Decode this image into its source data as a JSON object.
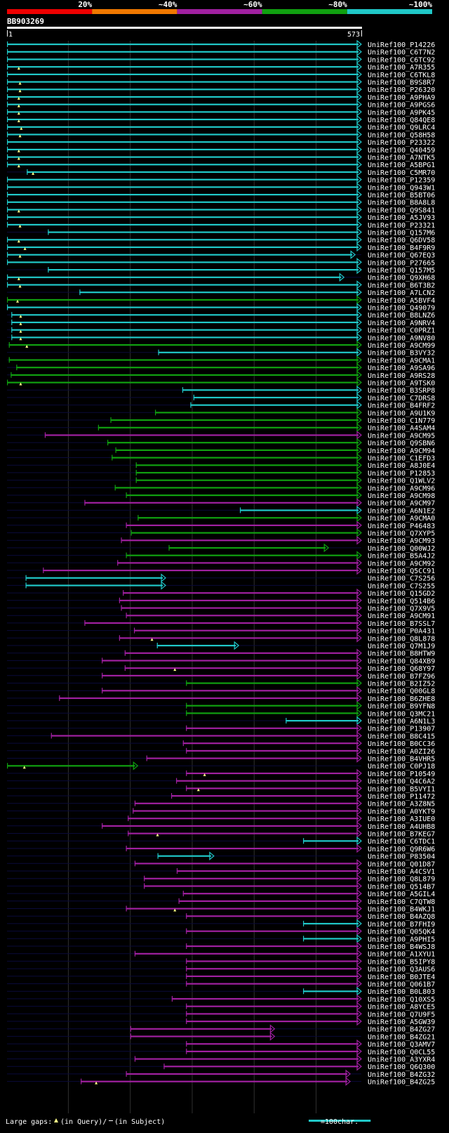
{
  "query_id": "BB903269",
  "query_start": "1",
  "query_end": "573",
  "query_length": 573,
  "legend": {
    "ranges": [
      {
        "label": "20%",
        "color": "#ee0000"
      },
      {
        "label": "~40%",
        "color": "#f07800"
      },
      {
        "label": "~60%",
        "color": "#a020a0"
      },
      {
        "label": "~80%",
        "color": "#10a010"
      },
      {
        "label": "~100%",
        "color": "#20c8c8"
      }
    ],
    "gap_text_prefix": "Large gaps:",
    "gap_text_query": "(in Query)/",
    "gap_text_subject": "(in Subject)",
    "scale_text": "=100char.",
    "scale_value": 100
  },
  "chart_data": {
    "type": "alignment_overview",
    "x_range": [
      1,
      573
    ],
    "identity_colors": {
      "c": "#20c8c8",
      "g": "#10a010",
      "m": "#a020a0"
    },
    "hits": [
      {
        "id": "UniRef100_P14226",
        "s": 1,
        "e": 573,
        "c": "c",
        "m": []
      },
      {
        "id": "UniRef100_C6T7N2",
        "s": 1,
        "e": 573,
        "c": "c",
        "m": []
      },
      {
        "id": "UniRef100_C6TC92",
        "s": 1,
        "e": 573,
        "c": "c",
        "m": []
      },
      {
        "id": "UniRef100_A7R355",
        "s": 1,
        "e": 573,
        "c": "c",
        "m": [
          20
        ]
      },
      {
        "id": "UniRef100_C6TKL8",
        "s": 1,
        "e": 573,
        "c": "c",
        "m": []
      },
      {
        "id": "UniRef100_B9S8R7",
        "s": 1,
        "e": 573,
        "c": "c",
        "m": [
          22
        ]
      },
      {
        "id": "UniRef100_P26320",
        "s": 1,
        "e": 573,
        "c": "c",
        "m": [
          22
        ]
      },
      {
        "id": "UniRef100_A9PHA9",
        "s": 1,
        "e": 573,
        "c": "c",
        "m": [
          20
        ]
      },
      {
        "id": "UniRef100_A9PGS6",
        "s": 1,
        "e": 573,
        "c": "c",
        "m": [
          20
        ]
      },
      {
        "id": "UniRef100_A9PK45",
        "s": 1,
        "e": 573,
        "c": "c",
        "m": [
          20
        ]
      },
      {
        "id": "UniRef100_Q84QE8",
        "s": 1,
        "e": 573,
        "c": "c",
        "m": [
          20
        ]
      },
      {
        "id": "UniRef100_Q9LRC4",
        "s": 1,
        "e": 573,
        "c": "c",
        "m": [
          24
        ]
      },
      {
        "id": "UniRef100_Q58H58",
        "s": 1,
        "e": 573,
        "c": "c",
        "m": [
          22
        ]
      },
      {
        "id": "UniRef100_P23322",
        "s": 1,
        "e": 573,
        "c": "c",
        "m": []
      },
      {
        "id": "UniRef100_Q40459",
        "s": 1,
        "e": 573,
        "c": "c",
        "m": [
          20
        ]
      },
      {
        "id": "UniRef100_A7NTK5",
        "s": 1,
        "e": 573,
        "c": "c",
        "m": [
          20
        ]
      },
      {
        "id": "UniRef100_A5BPG1",
        "s": 1,
        "e": 573,
        "c": "c",
        "m": [
          20
        ]
      },
      {
        "id": "UniRef100_C5MR70",
        "s": 33,
        "e": 573,
        "c": "c",
        "m": [
          43
        ]
      },
      {
        "id": "UniRef100_P12359",
        "s": 1,
        "e": 573,
        "c": "c",
        "m": []
      },
      {
        "id": "UniRef100_Q943W1",
        "s": 1,
        "e": 573,
        "c": "c",
        "m": []
      },
      {
        "id": "UniRef100_B5BT06",
        "s": 1,
        "e": 573,
        "c": "c",
        "m": []
      },
      {
        "id": "UniRef100_B8A8L8",
        "s": 1,
        "e": 573,
        "c": "c",
        "m": []
      },
      {
        "id": "UniRef100_Q9S841",
        "s": 1,
        "e": 573,
        "c": "c",
        "m": [
          20
        ]
      },
      {
        "id": "UniRef100_A5JV93",
        "s": 1,
        "e": 573,
        "c": "c",
        "m": []
      },
      {
        "id": "UniRef100_P23321",
        "s": 1,
        "e": 573,
        "c": "c",
        "m": [
          22
        ]
      },
      {
        "id": "UniRef100_Q157M6",
        "s": 67,
        "e": 573,
        "c": "c",
        "m": []
      },
      {
        "id": "UniRef100_Q6DV58",
        "s": 1,
        "e": 573,
        "c": "c",
        "m": [
          20
        ]
      },
      {
        "id": "UniRef100_B4F9R9",
        "s": 1,
        "e": 573,
        "c": "c",
        "m": [
          30
        ]
      },
      {
        "id": "UniRef100_Q67EQ3",
        "s": 1,
        "e": 563,
        "c": "c",
        "m": [
          22
        ]
      },
      {
        "id": "UniRef100_P27665",
        "s": 1,
        "e": 573,
        "c": "c",
        "m": []
      },
      {
        "id": "UniRef100_Q157M5",
        "s": 67,
        "e": 573,
        "c": "c",
        "m": []
      },
      {
        "id": "UniRef100_Q9XH68",
        "s": 1,
        "e": 545,
        "c": "c",
        "m": [
          20
        ]
      },
      {
        "id": "UniRef100_B6T3B2",
        "s": 1,
        "e": 573,
        "c": "c",
        "m": [
          22
        ]
      },
      {
        "id": "UniRef100_A7LCN2",
        "s": 118,
        "e": 573,
        "c": "c",
        "m": []
      },
      {
        "id": "UniRef100_A5BVF4",
        "s": 1,
        "e": 573,
        "c": "g",
        "m": [
          18
        ]
      },
      {
        "id": "UniRef100_Q49079",
        "s": 1,
        "e": 573,
        "c": "c",
        "m": []
      },
      {
        "id": "UniRef100_B8LNZ6",
        "s": 8,
        "e": 573,
        "c": "c",
        "m": [
          23
        ]
      },
      {
        "id": "UniRef100_A9NRV4",
        "s": 8,
        "e": 573,
        "c": "c",
        "m": [
          23
        ]
      },
      {
        "id": "UniRef100_C0PRZ1",
        "s": 8,
        "e": 573,
        "c": "c",
        "m": [
          23
        ]
      },
      {
        "id": "UniRef100_A9NV80",
        "s": 8,
        "e": 573,
        "c": "c",
        "m": [
          23
        ]
      },
      {
        "id": "UniRef100_A9CM99",
        "s": 4,
        "e": 573,
        "c": "g",
        "m": [
          33
        ]
      },
      {
        "id": "UniRef100_B3VY32",
        "s": 245,
        "e": 573,
        "c": "c",
        "m": []
      },
      {
        "id": "UniRef100_A9CMA1",
        "s": 4,
        "e": 573,
        "c": "g",
        "m": []
      },
      {
        "id": "UniRef100_A9SA96",
        "s": 16,
        "e": 573,
        "c": "g",
        "m": []
      },
      {
        "id": "UniRef100_A9RS28",
        "s": 7,
        "e": 573,
        "c": "g",
        "m": []
      },
      {
        "id": "UniRef100_A9TSK0",
        "s": 1,
        "e": 573,
        "c": "g",
        "m": [
          23
        ]
      },
      {
        "id": "UniRef100_B3SRP8",
        "s": 284,
        "e": 573,
        "c": "c",
        "m": []
      },
      {
        "id": "UniRef100_C7DRS8",
        "s": 302,
        "e": 573,
        "c": "c",
        "m": []
      },
      {
        "id": "UniRef100_B4FRF2",
        "s": 297,
        "e": 573,
        "c": "c",
        "m": []
      },
      {
        "id": "UniRef100_A9U1K9",
        "s": 240,
        "e": 573,
        "c": "g",
        "m": []
      },
      {
        "id": "UniRef100_C1N779",
        "s": 168,
        "e": 573,
        "c": "g",
        "m": []
      },
      {
        "id": "UniRef100_A4SAM4",
        "s": 148,
        "e": 573,
        "c": "g",
        "m": []
      },
      {
        "id": "UniRef100_A9CM95",
        "s": 62,
        "e": 573,
        "c": "m",
        "m": []
      },
      {
        "id": "UniRef100_Q9SBN6",
        "s": 163,
        "e": 573,
        "c": "g",
        "m": []
      },
      {
        "id": "UniRef100_A9CM94",
        "s": 176,
        "e": 573,
        "c": "g",
        "m": []
      },
      {
        "id": "UniRef100_C1EFD3",
        "s": 170,
        "e": 573,
        "c": "g",
        "m": []
      },
      {
        "id": "UniRef100_A8J0E4",
        "s": 209,
        "e": 573,
        "c": "g",
        "m": []
      },
      {
        "id": "UniRef100_P12853",
        "s": 209,
        "e": 573,
        "c": "g",
        "m": []
      },
      {
        "id": "UniRef100_Q1WLV2",
        "s": 209,
        "e": 573,
        "c": "g",
        "m": []
      },
      {
        "id": "UniRef100_A9CM96",
        "s": 175,
        "e": 573,
        "c": "g",
        "m": []
      },
      {
        "id": "UniRef100_A9CM98",
        "s": 193,
        "e": 573,
        "c": "g",
        "m": []
      },
      {
        "id": "UniRef100_A9CM97",
        "s": 126,
        "e": 573,
        "c": "m",
        "m": []
      },
      {
        "id": "UniRef100_A6N1E2",
        "s": 377,
        "e": 573,
        "c": "c",
        "m": []
      },
      {
        "id": "UniRef100_A9CMA0",
        "s": 212,
        "e": 573,
        "c": "g",
        "m": []
      },
      {
        "id": "UniRef100_P46483",
        "s": 193,
        "e": 573,
        "c": "m",
        "m": []
      },
      {
        "id": "UniRef100_Q7XYP5",
        "s": 201,
        "e": 573,
        "c": "g",
        "m": []
      },
      {
        "id": "UniRef100_A9CM93",
        "s": 185,
        "e": 573,
        "c": "m",
        "m": []
      },
      {
        "id": "UniRef100_Q00WJ2",
        "s": 262,
        "e": 520,
        "c": "g",
        "m": []
      },
      {
        "id": "UniRef100_B5A4J2",
        "s": 193,
        "e": 573,
        "c": "g",
        "m": []
      },
      {
        "id": "UniRef100_A9CM92",
        "s": 179,
        "e": 573,
        "c": "m",
        "m": []
      },
      {
        "id": "UniRef100_Q5CC91",
        "s": 59,
        "e": 573,
        "c": "m",
        "m": []
      },
      {
        "id": "UniRef100_C7S256",
        "s": 31,
        "e": 257,
        "c": "c",
        "m": []
      },
      {
        "id": "UniRef100_C7S255",
        "s": 31,
        "e": 257,
        "c": "c",
        "m": []
      },
      {
        "id": "UniRef100_Q15GD2",
        "s": 188,
        "e": 573,
        "c": "m",
        "m": []
      },
      {
        "id": "UniRef100_Q514B6",
        "s": 182,
        "e": 573,
        "c": "m",
        "m": []
      },
      {
        "id": "UniRef100_Q7X9V5",
        "s": 185,
        "e": 573,
        "c": "m",
        "m": []
      },
      {
        "id": "UniRef100_A9CM91",
        "s": 193,
        "e": 573,
        "c": "m",
        "m": []
      },
      {
        "id": "UniRef100_B7SSL7",
        "s": 126,
        "e": 573,
        "c": "m",
        "m": []
      },
      {
        "id": "UniRef100_P0A431",
        "s": 206,
        "e": 573,
        "c": "m",
        "m": []
      },
      {
        "id": "UniRef100_Q8L878",
        "s": 182,
        "e": 573,
        "c": "m",
        "m": [
          235
        ]
      },
      {
        "id": "UniRef100_Q7M1J9",
        "s": 243,
        "e": 375,
        "c": "c",
        "m": []
      },
      {
        "id": "UniRef100_B8HTW9",
        "s": 191,
        "e": 573,
        "c": "m",
        "m": []
      },
      {
        "id": "UniRef100_Q84XB9",
        "s": 154,
        "e": 573,
        "c": "m",
        "m": []
      },
      {
        "id": "UniRef100_Q68Y97",
        "s": 191,
        "e": 573,
        "c": "m",
        "m": [
          272
        ]
      },
      {
        "id": "UniRef100_B7FZ96",
        "s": 154,
        "e": 573,
        "c": "m",
        "m": []
      },
      {
        "id": "UniRef100_B2IZ52",
        "s": 290,
        "e": 573,
        "c": "g",
        "m": []
      },
      {
        "id": "UniRef100_Q00GL8",
        "s": 154,
        "e": 573,
        "c": "m",
        "m": []
      },
      {
        "id": "UniRef100_B6ZHE8",
        "s": 85,
        "e": 573,
        "c": "m",
        "m": []
      },
      {
        "id": "UniRef100_B9YFN8",
        "s": 290,
        "e": 573,
        "c": "g",
        "m": []
      },
      {
        "id": "UniRef100_Q3MC21",
        "s": 290,
        "e": 573,
        "c": "g",
        "m": []
      },
      {
        "id": "UniRef100_A6N1L3",
        "s": 451,
        "e": 573,
        "c": "c",
        "m": []
      },
      {
        "id": "UniRef100_P13907",
        "s": 290,
        "e": 573,
        "c": "m",
        "m": []
      },
      {
        "id": "UniRef100_B8C415",
        "s": 72,
        "e": 573,
        "c": "m",
        "m": []
      },
      {
        "id": "UniRef100_B0CC36",
        "s": 285,
        "e": 573,
        "c": "m",
        "m": []
      },
      {
        "id": "UniRef100_A0ZI26",
        "s": 290,
        "e": 573,
        "c": "m",
        "m": []
      },
      {
        "id": "UniRef100_B4VHR5",
        "s": 226,
        "e": 573,
        "c": "m",
        "m": []
      },
      {
        "id": "UniRef100_C0PJ18",
        "s": 1,
        "e": 212,
        "c": "g",
        "m": [
          29
        ]
      },
      {
        "id": "UniRef100_P10549",
        "s": 290,
        "e": 573,
        "c": "m",
        "m": [
          320
        ]
      },
      {
        "id": "UniRef100_Q4C6A2",
        "s": 274,
        "e": 573,
        "c": "m",
        "m": []
      },
      {
        "id": "UniRef100_B5VYI1",
        "s": 290,
        "e": 573,
        "c": "m",
        "m": [
          310
        ]
      },
      {
        "id": "UniRef100_P11472",
        "s": 266,
        "e": 573,
        "c": "m",
        "m": []
      },
      {
        "id": "UniRef100_A3Z8N5",
        "s": 207,
        "e": 573,
        "c": "m",
        "m": []
      },
      {
        "id": "UniRef100_A0YKT9",
        "s": 204,
        "e": 573,
        "c": "m",
        "m": []
      },
      {
        "id": "UniRef100_A3IUE0",
        "s": 196,
        "e": 573,
        "c": "m",
        "m": []
      },
      {
        "id": "UniRef100_A4UHB8",
        "s": 154,
        "e": 573,
        "c": "m",
        "m": []
      },
      {
        "id": "UniRef100_B7KEG7",
        "s": 196,
        "e": 573,
        "c": "m",
        "m": [
          244
        ]
      },
      {
        "id": "UniRef100_C6TDC1",
        "s": 479,
        "e": 573,
        "c": "c",
        "m": []
      },
      {
        "id": "UniRef100_Q9R6W6",
        "s": 193,
        "e": 573,
        "c": "m",
        "m": []
      },
      {
        "id": "UniRef100_P83504",
        "s": 244,
        "e": 335,
        "c": "c",
        "m": []
      },
      {
        "id": "UniRef100_Q01D87",
        "s": 207,
        "e": 573,
        "c": "m",
        "m": []
      },
      {
        "id": "UniRef100_A4CSV1",
        "s": 275,
        "e": 573,
        "c": "m",
        "m": []
      },
      {
        "id": "UniRef100_Q8L879",
        "s": 222,
        "e": 573,
        "c": "m",
        "m": []
      },
      {
        "id": "UniRef100_Q514B7",
        "s": 222,
        "e": 573,
        "c": "m",
        "m": []
      },
      {
        "id": "UniRef100_A5GIL4",
        "s": 285,
        "e": 573,
        "c": "m",
        "m": []
      },
      {
        "id": "UniRef100_C7QTW8",
        "s": 278,
        "e": 573,
        "c": "m",
        "m": []
      },
      {
        "id": "UniRef100_B4WKJ1",
        "s": 193,
        "e": 573,
        "c": "m",
        "m": [
          272
        ]
      },
      {
        "id": "UniRef100_B4AZQ8",
        "s": 290,
        "e": 573,
        "c": "m",
        "m": []
      },
      {
        "id": "UniRef100_B7FHI9",
        "s": 479,
        "e": 573,
        "c": "c",
        "m": []
      },
      {
        "id": "UniRef100_Q05QK4",
        "s": 290,
        "e": 573,
        "c": "m",
        "m": []
      },
      {
        "id": "UniRef100_A9PHI5",
        "s": 479,
        "e": 573,
        "c": "c",
        "m": []
      },
      {
        "id": "UniRef100_B4WSJ8",
        "s": 290,
        "e": 573,
        "c": "m",
        "m": []
      },
      {
        "id": "UniRef100_A1XYU1",
        "s": 207,
        "e": 573,
        "c": "m",
        "m": []
      },
      {
        "id": "UniRef100_B5IPY8",
        "s": 290,
        "e": 573,
        "c": "m",
        "m": []
      },
      {
        "id": "UniRef100_Q3AUS6",
        "s": 290,
        "e": 573,
        "c": "m",
        "m": []
      },
      {
        "id": "UniRef100_B0JTE4",
        "s": 290,
        "e": 573,
        "c": "m",
        "m": []
      },
      {
        "id": "UniRef100_Q061B7",
        "s": 290,
        "e": 573,
        "c": "m",
        "m": []
      },
      {
        "id": "UniRef100_B0L803",
        "s": 479,
        "e": 573,
        "c": "c",
        "m": []
      },
      {
        "id": "UniRef100_Q10XS5",
        "s": 267,
        "e": 573,
        "c": "m",
        "m": []
      },
      {
        "id": "UniRef100_A8YCE5",
        "s": 290,
        "e": 573,
        "c": "m",
        "m": []
      },
      {
        "id": "UniRef100_Q7U9F5",
        "s": 290,
        "e": 573,
        "c": "m",
        "m": []
      },
      {
        "id": "UniRef100_A5GW39",
        "s": 290,
        "e": 573,
        "c": "m",
        "m": []
      },
      {
        "id": "UniRef100_B4ZG27",
        "s": 200,
        "e": 433,
        "c": "m",
        "m": []
      },
      {
        "id": "UniRef100_B4ZG21",
        "s": 200,
        "e": 433,
        "c": "m",
        "m": []
      },
      {
        "id": "UniRef100_Q3AMV7",
        "s": 290,
        "e": 573,
        "c": "m",
        "m": []
      },
      {
        "id": "UniRef100_Q0CL55",
        "s": 290,
        "e": 573,
        "c": "m",
        "m": []
      },
      {
        "id": "UniRef100_A3YXR4",
        "s": 207,
        "e": 573,
        "c": "m",
        "m": []
      },
      {
        "id": "UniRef100_Q6Q300",
        "s": 254,
        "e": 573,
        "c": "m",
        "m": []
      },
      {
        "id": "UniRef100_B4ZG32",
        "s": 193,
        "e": 555,
        "c": "m",
        "m": []
      },
      {
        "id": "UniRef100_B4ZG25",
        "s": 120,
        "e": 555,
        "c": "m",
        "m": [
          145
        ]
      }
    ]
  }
}
